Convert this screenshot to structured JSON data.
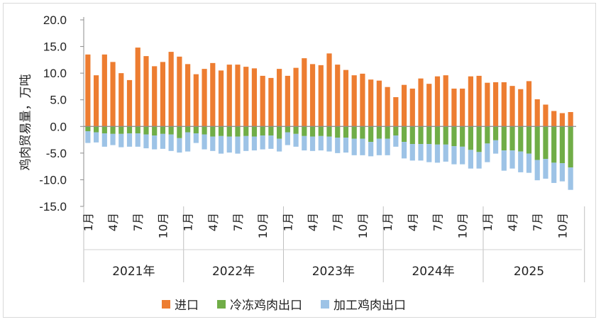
{
  "chart_data": {
    "type": "bar",
    "stacked": true,
    "ylabel": "鸡肉贸易量，万吨",
    "ylim": [
      -15,
      20
    ],
    "yticks": [
      "20.0",
      "15.0",
      "10.0",
      "5.0",
      "0.0",
      "-5.0",
      "-10.0",
      "-15.0"
    ],
    "grid": false,
    "legend_position": "bottom",
    "years": [
      {
        "label": "2021年",
        "months": 12
      },
      {
        "label": "2022年",
        "months": 12
      },
      {
        "label": "2023年",
        "months": 12
      },
      {
        "label": "2024年",
        "months": 12
      },
      {
        "label": "2025",
        "months": 11
      }
    ],
    "month_tick_labels": [
      "1月",
      "4月",
      "7月",
      "10月"
    ],
    "series": [
      {
        "name": "进口",
        "color": "#ED7D31",
        "values": [
          13.5,
          9.6,
          13.5,
          12.1,
          10.0,
          8.7,
          14.8,
          13.2,
          11.3,
          12.1,
          14.0,
          13.1,
          11.7,
          9.8,
          10.8,
          11.9,
          10.5,
          11.6,
          11.6,
          11.2,
          10.9,
          9.5,
          9.1,
          10.8,
          9.5,
          11.0,
          12.8,
          11.7,
          11.5,
          13.7,
          11.6,
          10.6,
          9.6,
          9.9,
          8.8,
          8.6,
          7.4,
          5.5,
          7.8,
          7.1,
          9.0,
          8.0,
          9.4,
          9.6,
          7.1,
          7.1,
          9.4,
          9.5,
          8.2,
          8.3,
          8.3,
          7.6,
          7.0,
          8.5,
          5.1,
          4.1,
          2.9,
          2.5,
          2.7
        ]
      },
      {
        "name": "冷冻鸡肉出口",
        "color": "#70AD47",
        "values": [
          -0.9,
          -1.1,
          -1.3,
          -1.4,
          -1.4,
          -1.3,
          -1.3,
          -1.5,
          -1.7,
          -1.4,
          -1.5,
          -2.2,
          -1.1,
          -1.3,
          -1.5,
          -1.9,
          -1.8,
          -1.9,
          -1.9,
          -1.8,
          -1.9,
          -1.7,
          -1.7,
          -2.3,
          -1.1,
          -1.4,
          -1.8,
          -1.9,
          -1.8,
          -1.9,
          -2.1,
          -2.1,
          -2.3,
          -2.3,
          -2.9,
          -2.3,
          -2.3,
          -1.7,
          -2.9,
          -3.3,
          -3.3,
          -3.3,
          -3.4,
          -3.4,
          -3.7,
          -3.8,
          -4.4,
          -4.8,
          -3.2,
          -2.6,
          -4.5,
          -4.5,
          -4.7,
          -5.1,
          -6.3,
          -6.1,
          -6.8,
          -6.9,
          -7.7
        ]
      },
      {
        "name": "加工鸡肉出口",
        "color": "#9DC3E6",
        "values": [
          -2.2,
          -1.9,
          -2.5,
          -2.1,
          -2.5,
          -2.5,
          -2.5,
          -2.6,
          -2.6,
          -2.8,
          -3.1,
          -2.7,
          -3.6,
          -1.8,
          -2.8,
          -2.7,
          -3.3,
          -3.0,
          -3.2,
          -2.8,
          -2.6,
          -2.6,
          -2.5,
          -2.4,
          -2.4,
          -2.4,
          -2.7,
          -2.7,
          -2.7,
          -2.8,
          -2.9,
          -2.8,
          -3.1,
          -3.1,
          -2.7,
          -3.1,
          -3.1,
          -2.1,
          -3.1,
          -3.1,
          -3.1,
          -3.4,
          -3.4,
          -3.2,
          -3.4,
          -3.3,
          -3.5,
          -3.1,
          -3.5,
          -2.5,
          -3.8,
          -3.4,
          -3.9,
          -3.6,
          -3.8,
          -3.7,
          -3.8,
          -3.4,
          -4.2
        ]
      }
    ]
  },
  "axis_color": "#8c8c8c"
}
